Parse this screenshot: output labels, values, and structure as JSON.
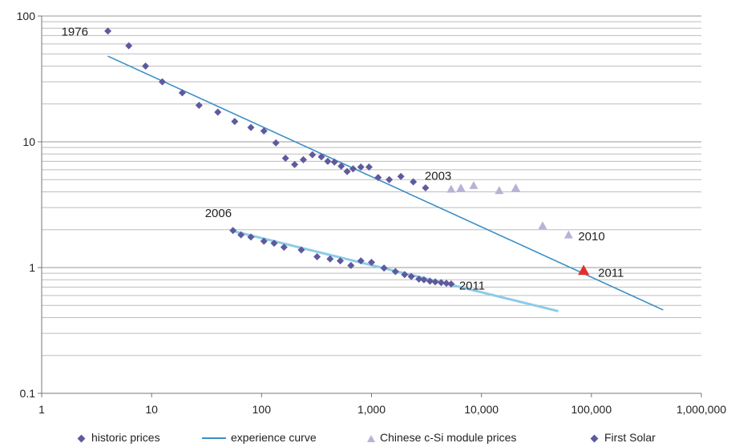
{
  "chart_data": {
    "type": "scatter",
    "title": "",
    "xlabel": "",
    "ylabel": "",
    "x_scale": "log",
    "y_scale": "log",
    "xlim": [
      1,
      1000000
    ],
    "ylim": [
      0.1,
      100
    ],
    "grid": "horizontal",
    "legend_position": "bottom",
    "x_ticks": [
      {
        "value": 1,
        "label": "1"
      },
      {
        "value": 10,
        "label": "10"
      },
      {
        "value": 100,
        "label": "100"
      },
      {
        "value": 1000,
        "label": "1,000"
      },
      {
        "value": 10000,
        "label": "10,000"
      },
      {
        "value": 100000,
        "label": "100,000"
      },
      {
        "value": 1000000,
        "label": "1,000,000"
      }
    ],
    "y_ticks": [
      {
        "value": 100,
        "label": "100"
      },
      {
        "value": 10,
        "label": "10"
      },
      {
        "value": 1,
        "label": "1"
      },
      {
        "value": 0.1,
        "label": "0.1"
      }
    ],
    "series": [
      {
        "name": "historic prices",
        "marker": "diamond",
        "color": "#5e5a9e",
        "points": [
          [
            4,
            76
          ],
          [
            6.2,
            58
          ],
          [
            8.8,
            40
          ],
          [
            12.5,
            30
          ],
          [
            19,
            24.5
          ],
          [
            27,
            19.5
          ],
          [
            40,
            17.2
          ],
          [
            57,
            14.5
          ],
          [
            80,
            13
          ],
          [
            105,
            12.2
          ],
          [
            135,
            9.8
          ],
          [
            165,
            7.4
          ],
          [
            200,
            6.6
          ],
          [
            240,
            7.2
          ],
          [
            290,
            7.9
          ],
          [
            350,
            7.6
          ],
          [
            400,
            7.0
          ],
          [
            460,
            6.9
          ],
          [
            530,
            6.4
          ],
          [
            600,
            5.8
          ],
          [
            680,
            6.1
          ],
          [
            800,
            6.3
          ],
          [
            950,
            6.3
          ],
          [
            1150,
            5.2
          ],
          [
            1450,
            5.0
          ],
          [
            1850,
            5.3
          ],
          [
            2400,
            4.8
          ],
          [
            3100,
            4.3
          ]
        ]
      },
      {
        "name": "experience curve",
        "type": "line",
        "color": "#3b8fc7",
        "points": [
          [
            4,
            48
          ],
          [
            450000,
            0.46
          ]
        ]
      },
      {
        "name": "Chinese c-Si module prices",
        "marker": "triangle",
        "color": "#b9b2d6",
        "points": [
          [
            5300,
            4.2
          ],
          [
            6500,
            4.3
          ],
          [
            8500,
            4.5
          ],
          [
            14500,
            4.1
          ],
          [
            20500,
            4.3
          ],
          [
            36000,
            2.15
          ],
          [
            62000,
            1.82
          ],
          [
            85000,
            0.95
          ]
        ]
      },
      {
        "name": "First Solar",
        "marker": "diamond",
        "color": "#5e5a9e",
        "points": [
          [
            55,
            1.97
          ],
          [
            65,
            1.82
          ],
          [
            80,
            1.75
          ],
          [
            105,
            1.62
          ],
          [
            130,
            1.56
          ],
          [
            160,
            1.45
          ],
          [
            230,
            1.38
          ],
          [
            320,
            1.22
          ],
          [
            420,
            1.17
          ],
          [
            520,
            1.13
          ],
          [
            650,
            1.04
          ],
          [
            800,
            1.13
          ],
          [
            1000,
            1.1
          ],
          [
            1300,
            0.99
          ],
          [
            1650,
            0.93
          ],
          [
            2000,
            0.88
          ],
          [
            2300,
            0.85
          ],
          [
            2700,
            0.81
          ],
          [
            3000,
            0.8
          ],
          [
            3400,
            0.78
          ],
          [
            3800,
            0.77
          ],
          [
            4300,
            0.76
          ],
          [
            4800,
            0.75
          ],
          [
            5300,
            0.74
          ]
        ]
      },
      {
        "name": "First Solar experience curve",
        "type": "line",
        "color": "#8ccbe8",
        "points": [
          [
            55,
            1.95
          ],
          [
            50000,
            0.45
          ]
        ]
      }
    ],
    "highlight_point": {
      "x": 85000,
      "y": 0.95,
      "color": "#e0302e",
      "marker": "triangle"
    },
    "annotations": [
      {
        "text": "1976",
        "x": 4,
        "y": 76
      },
      {
        "text": "2003",
        "x": 3100,
        "y": 4.3
      },
      {
        "text": "2006",
        "x": 55,
        "y": 1.97
      },
      {
        "text": "2011",
        "x": 5300,
        "y": 0.74
      },
      {
        "text": "2010",
        "x": 62000,
        "y": 1.82
      },
      {
        "text": "2011",
        "x": 85000,
        "y": 0.95
      }
    ],
    "legend": [
      {
        "label": "historic prices",
        "marker": "diamond",
        "color": "#5e5a9e"
      },
      {
        "label": "experience curve",
        "marker": "line",
        "color": "#3b8fc7"
      },
      {
        "label": "Chinese c-Si module prices",
        "marker": "triangle",
        "color": "#b9b2d6"
      },
      {
        "label": "First Solar",
        "marker": "diamond",
        "color": "#5e5a9e"
      }
    ]
  }
}
